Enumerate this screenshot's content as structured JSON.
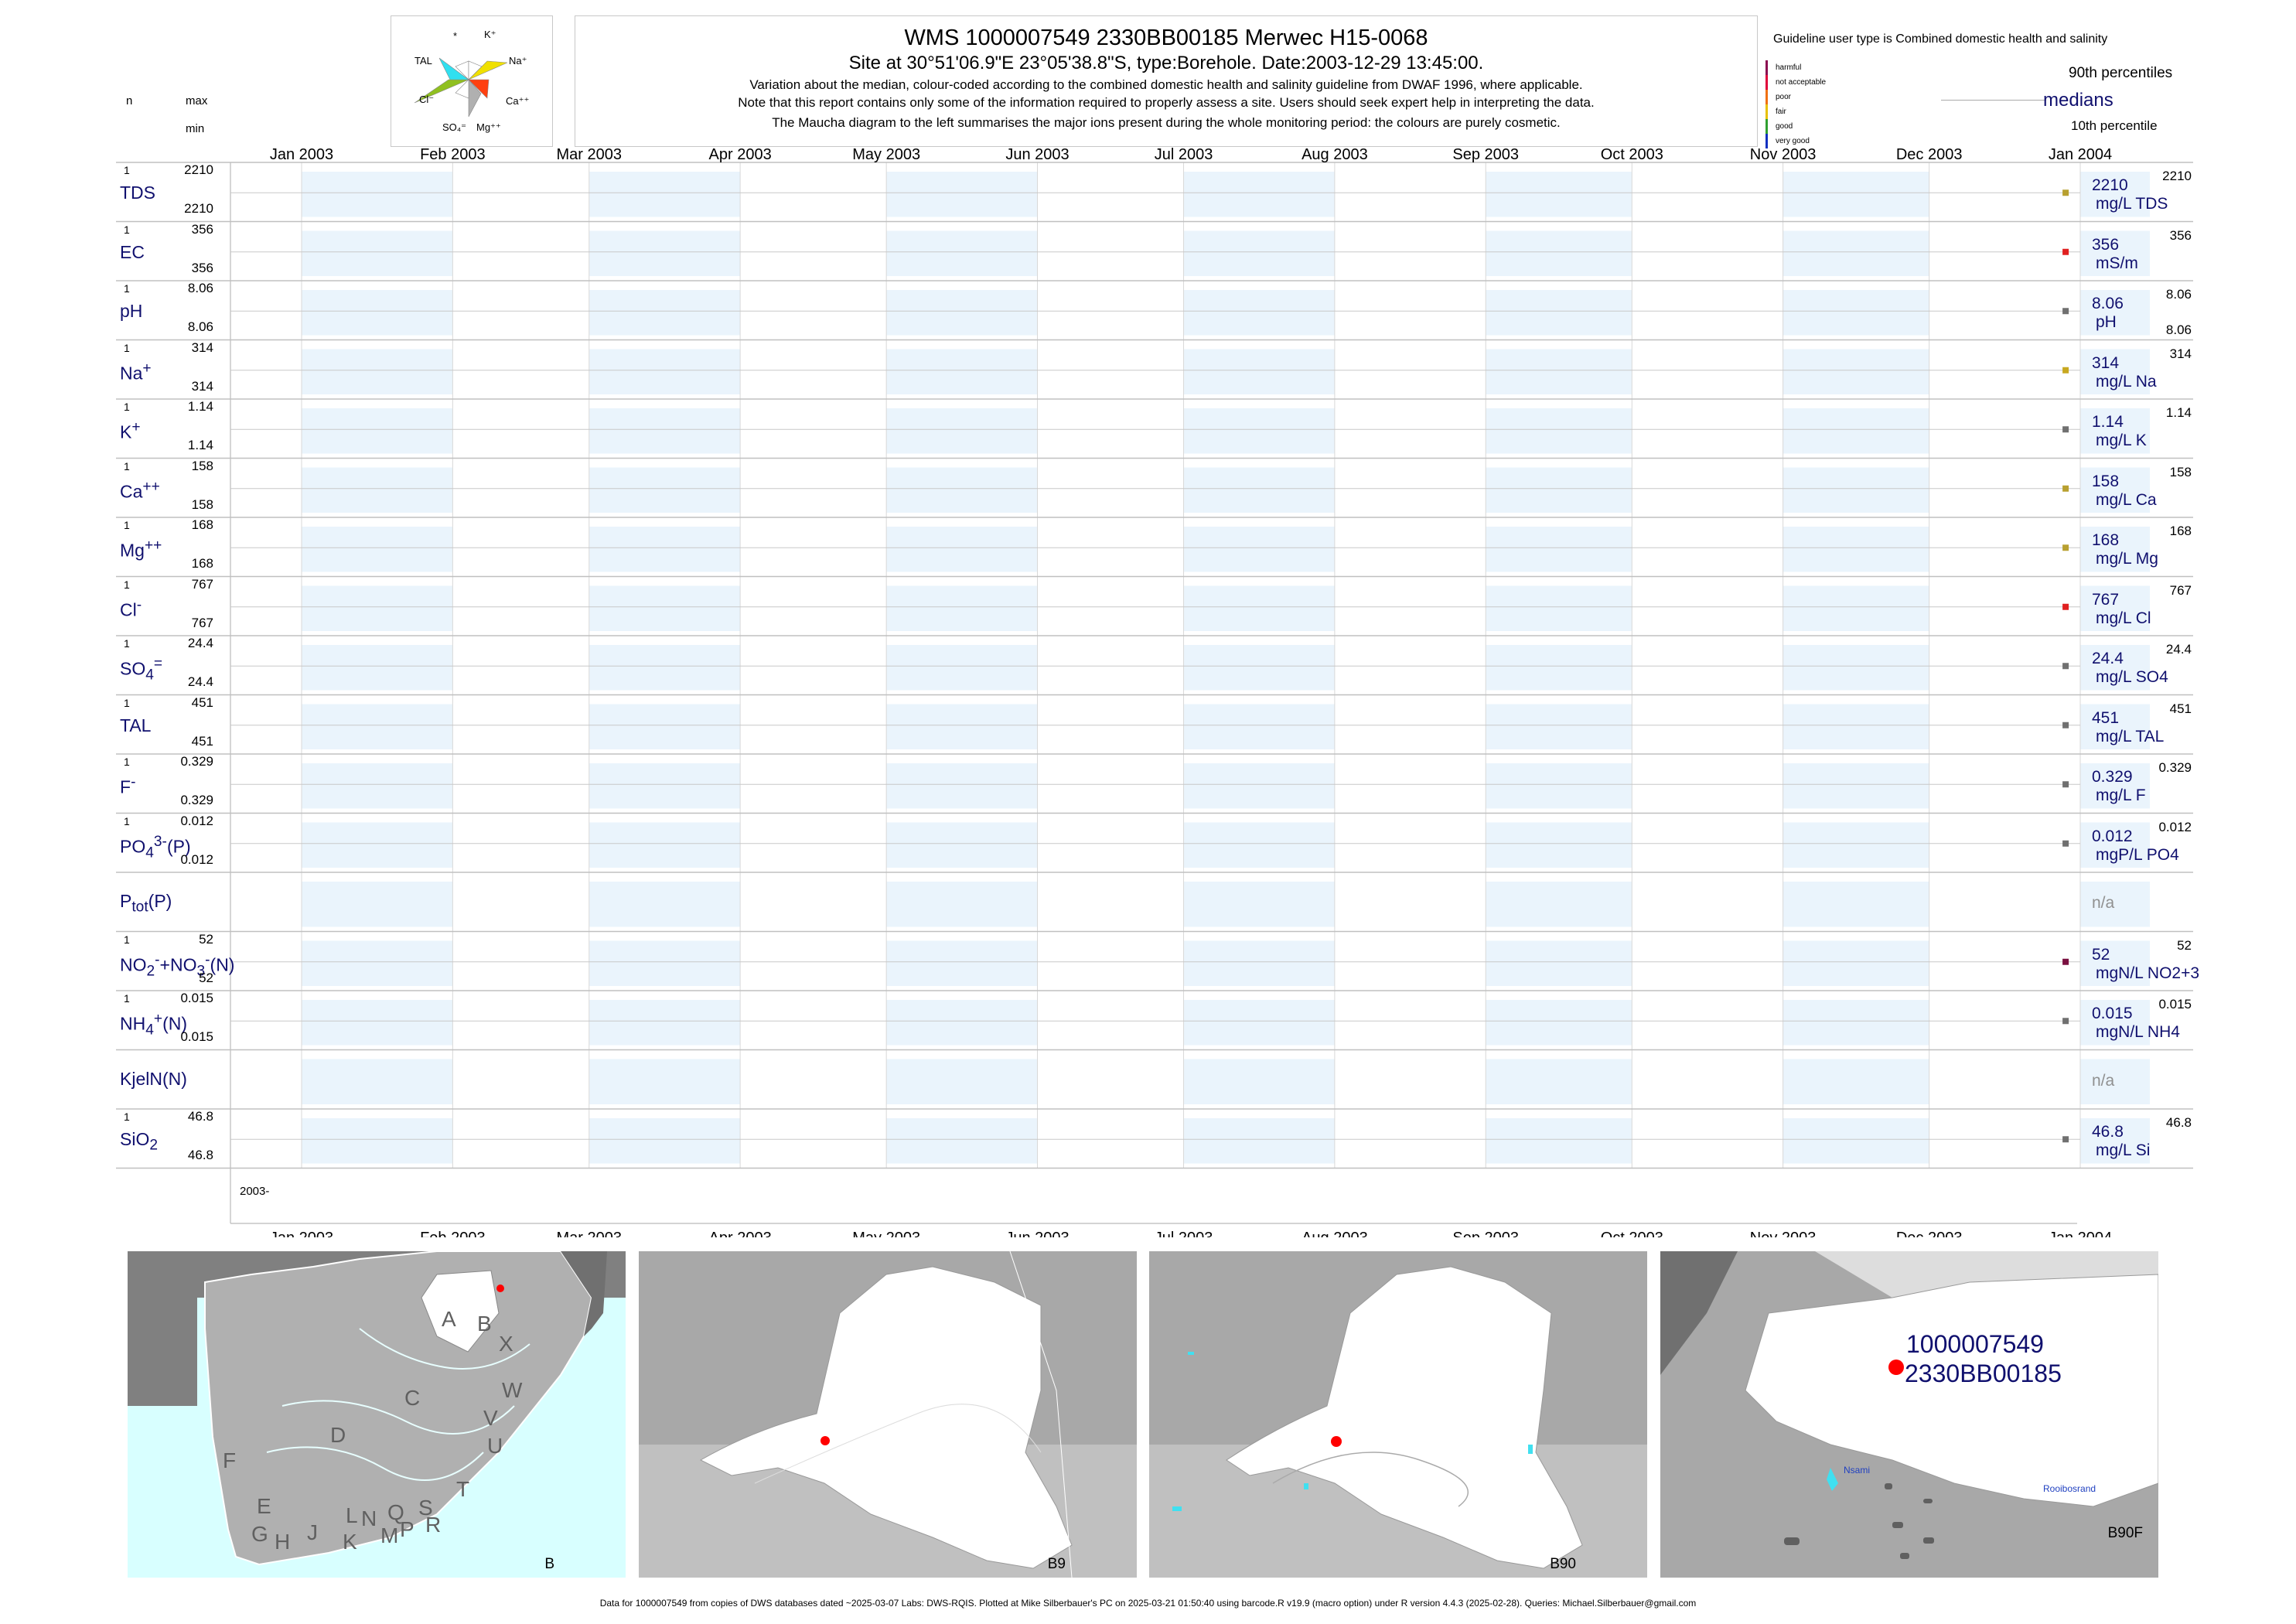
{
  "header": {
    "title": "WMS 1000007549 2330BB00185 Merwec H15-0068",
    "subtitle": "Site at 30°51'06.9\"E 23°05'38.8\"S, type:Borehole. Date:2003-12-29 13:45:00.",
    "note1": "Variation about the median,  colour-coded according to the combined domestic health and salinity guideline from DWAF 1996, where applicable.",
    "note2": "Note that this report contains only some of the information required to properly assess a site. Users should seek expert help in interpreting the data.",
    "note3": "The Maucha diagram to the left summarises the major ions present during the whole monitoring period: the colours are purely cosmetic.",
    "col_n": "n",
    "col_max": "max",
    "col_min": "min"
  },
  "maucha": {
    "labels": [
      "*",
      "K+",
      "Na+",
      "Ca++",
      "Mg++",
      "SO4=",
      "Cl-",
      "TAL"
    ]
  },
  "legend": {
    "guideline": "Guideline user type is Combined domestic health and salinity",
    "classes": [
      {
        "label": "harmful",
        "color": "#8b0a50"
      },
      {
        "label": "not acceptable",
        "color": "#e0003a"
      },
      {
        "label": "poor",
        "color": "#f07010"
      },
      {
        "label": "fair",
        "color": "#e8c000"
      },
      {
        "label": "good",
        "color": "#30a030"
      },
      {
        "label": "very good",
        "color": "#1030c0"
      }
    ],
    "p90": "90th percentiles",
    "medians": "medians",
    "p10": "10th percentile"
  },
  "chart_data": {
    "type": "scatter",
    "x_axis": {
      "ticks": [
        "Jan 2003",
        "Feb 2003",
        "Mar 2003",
        "Apr 2003",
        "May 2003",
        "Jun 2003",
        "Jul 2003",
        "Aug 2003",
        "Sep 2003",
        "Oct 2003",
        "Nov 2003",
        "Dec 2003",
        "Jan 2004"
      ],
      "start": "2003-01-01",
      "end": "2004-01-01",
      "bottom_label": "2003-"
    },
    "sample_date": "2003-12-29",
    "series": [
      {
        "label": "TDS",
        "n": "1",
        "max": "2210",
        "min": "2210",
        "value": 2210,
        "value_text": "2210",
        "unit": "mg/L TDS",
        "right_top": "2210",
        "right_bottom": "",
        "color": "#b8a030"
      },
      {
        "label": "EC",
        "n": "1",
        "max": "356",
        "min": "356",
        "value": 356,
        "value_text": "356",
        "unit": "mS/m",
        "right_top": "356",
        "right_bottom": "",
        "color": "#e02020"
      },
      {
        "label": "pH",
        "n": "1",
        "max": "8.06",
        "min": "8.06",
        "value": 8.06,
        "value_text": "8.06",
        "unit": "pH",
        "right_top": "8.06",
        "right_bottom": "8.06",
        "color": "#707070"
      },
      {
        "label": "Na+",
        "n": "1",
        "max": "314",
        "min": "314",
        "value": 314,
        "value_text": "314",
        "unit": "mg/L Na",
        "right_top": "314",
        "right_bottom": "",
        "color": "#c8a820"
      },
      {
        "label": "K+",
        "n": "1",
        "max": "1.14",
        "min": "1.14",
        "value": 1.14,
        "value_text": "1.14",
        "unit": "mg/L K",
        "right_top": "1.14",
        "right_bottom": "",
        "color": "#707070"
      },
      {
        "label": "Ca++",
        "n": "1",
        "max": "158",
        "min": "158",
        "value": 158,
        "value_text": "158",
        "unit": "mg/L Ca",
        "right_top": "158",
        "right_bottom": "",
        "color": "#b8a030"
      },
      {
        "label": "Mg++",
        "n": "1",
        "max": "168",
        "min": "168",
        "value": 168,
        "value_text": "168",
        "unit": "mg/L Mg",
        "right_top": "168",
        "right_bottom": "",
        "color": "#b8a030"
      },
      {
        "label": "Cl-",
        "n": "1",
        "max": "767",
        "min": "767",
        "value": 767,
        "value_text": "767",
        "unit": "mg/L Cl",
        "right_top": "767",
        "right_bottom": "",
        "color": "#e02020"
      },
      {
        "label": "SO4=",
        "n": "1",
        "max": "24.4",
        "min": "24.4",
        "value": 24.4,
        "value_text": "24.4",
        "unit": "mg/L SO4",
        "right_top": "24.4",
        "right_bottom": "",
        "color": "#707070"
      },
      {
        "label": "TAL",
        "n": "1",
        "max": "451",
        "min": "451",
        "value": 451,
        "value_text": "451",
        "unit": "mg/L TAL",
        "right_top": "451",
        "right_bottom": "",
        "color": "#707070"
      },
      {
        "label": "F-",
        "n": "1",
        "max": "0.329",
        "min": "0.329",
        "value": 0.329,
        "value_text": "0.329",
        "unit": "mg/L F",
        "right_top": "0.329",
        "right_bottom": "",
        "color": "#707070"
      },
      {
        "label": "PO43-(P)",
        "n": "1",
        "max": "0.012",
        "min": "0.012",
        "value": 0.012,
        "value_text": "0.012",
        "unit": "mgP/L PO4",
        "right_top": "0.012",
        "right_bottom": "",
        "color": "#707070"
      },
      {
        "label": "Ptot(P)",
        "n": "",
        "max": "",
        "min": "",
        "value": null,
        "value_text": "n/a",
        "unit": "",
        "right_top": "",
        "right_bottom": "",
        "color": "#707070"
      },
      {
        "label": "NO2-+NO3-(N)",
        "n": "1",
        "max": "52",
        "min": "52",
        "value": 52,
        "value_text": "52",
        "unit": "mgN/L NO2+3",
        "right_top": "52",
        "right_bottom": "",
        "color": "#7a1040"
      },
      {
        "label": "NH4+(N)",
        "n": "1",
        "max": "0.015",
        "min": "0.015",
        "value": 0.015,
        "value_text": "0.015",
        "unit": "mgN/L NH4",
        "right_top": "0.015",
        "right_bottom": "",
        "color": "#707070"
      },
      {
        "label": "KjelN(N)",
        "n": "",
        "max": "",
        "min": "",
        "value": null,
        "value_text": "n/a",
        "unit": "",
        "right_top": "",
        "right_bottom": "",
        "color": "#707070"
      },
      {
        "label": "SiO2",
        "n": "1",
        "max": "46.8",
        "min": "46.8",
        "value": 46.8,
        "value_text": "46.8",
        "unit": "mg/L Si",
        "right_top": "46.8",
        "right_bottom": "",
        "color": "#707070"
      }
    ]
  },
  "maps": {
    "map1_letters": [
      "A",
      "B",
      "X",
      "W",
      "C",
      "V",
      "U",
      "D",
      "T",
      "F",
      "E",
      "S",
      "R",
      "L",
      "N",
      "Q",
      "J",
      "K",
      "M",
      "P",
      "G",
      "H"
    ],
    "map1_corner": "B",
    "map2_corner": "B9",
    "map3_corner": "B90",
    "map4_corner": "B90F",
    "site_id1": "1000007549",
    "site_id2": "2330BB00185",
    "place1": "Nsami",
    "place2": "Rooibosrand"
  },
  "footer": "Data for 1000007549 from copies of DWS databases dated ~2025-03-07 Labs: DWS-RQIS. Plotted at Mike Silberbauer's PC on 2025-03-21 01:50:40 using barcode.R v19.9 (macro option) under R version 4.4.3 (2025-02-28). Queries: Michael.Silberbauer@gmail.com"
}
